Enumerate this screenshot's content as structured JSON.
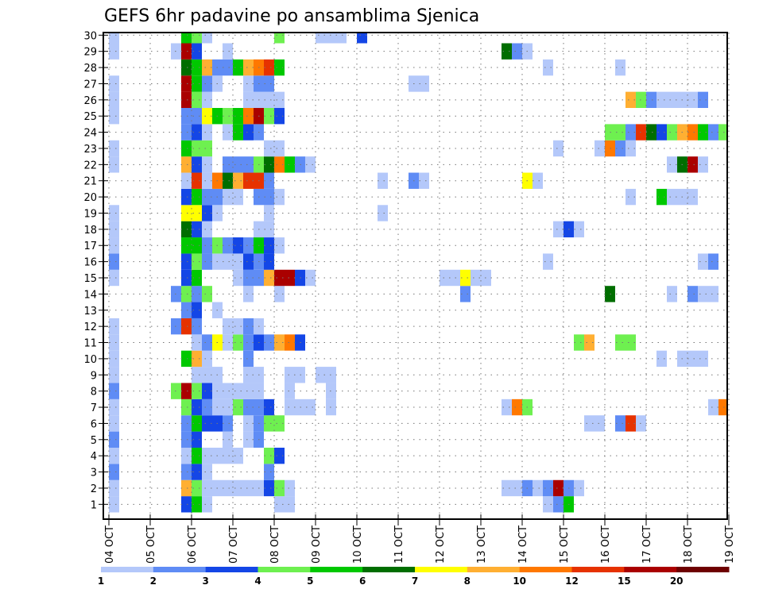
{
  "chart_data": {
    "type": "heatmap",
    "title": "GEFS 6hr padavine po ansamblima Sjenica",
    "xlabel": "",
    "ylabel": "",
    "x_unit": "6-hour step from 04 OCT 00Z",
    "x_steps": 61,
    "x_ticks": [
      "04 OCT",
      "05 OCT",
      "06 OCT",
      "07 OCT",
      "08 OCT",
      "09 OCT",
      "10 OCT",
      "11 OCT",
      "12 OCT",
      "13 OCT",
      "14 OCT",
      "15 OCT",
      "16 OCT",
      "17 OCT",
      "18 OCT",
      "19 OCT"
    ],
    "y_ticks": [
      "1",
      "2",
      "3",
      "4",
      "5",
      "6",
      "7",
      "8",
      "9",
      "10",
      "11",
      "12",
      "13",
      "14",
      "15",
      "16",
      "17",
      "18",
      "19",
      "20",
      "21",
      "22",
      "23",
      "24",
      "25",
      "26",
      "27",
      "28",
      "29",
      "30"
    ],
    "ylim": [
      0,
      30
    ],
    "grid": true,
    "colorbar": {
      "placement": "bottom",
      "labels": [
        "1",
        "2",
        "3",
        "4",
        "5",
        "6",
        "7",
        "8",
        "10",
        "12",
        "15",
        "20"
      ],
      "colors": [
        "#b4c8fa",
        "#5f8cf5",
        "#1446e6",
        "#6ef050",
        "#00c800",
        "#006e00",
        "#ffff00",
        "#ffaf32",
        "#ff7800",
        "#e63200",
        "#aa0000",
        "#6e0000"
      ]
    },
    "cells_note": "rows keyed by ensemble member; each entry is [time_step, color_class_index]",
    "rows": {
      "30": [
        [
          0,
          0
        ],
        [
          7,
          4
        ],
        [
          8,
          3
        ],
        [
          9,
          0
        ],
        [
          16,
          3
        ],
        [
          20,
          0
        ],
        [
          21,
          0
        ],
        [
          22,
          0
        ],
        [
          24,
          2
        ]
      ],
      "29": [
        [
          0,
          0
        ],
        [
          6,
          0
        ],
        [
          7,
          10
        ],
        [
          8,
          2
        ],
        [
          11,
          0
        ],
        [
          38,
          5
        ],
        [
          39,
          1
        ],
        [
          40,
          0
        ]
      ],
      "28": [
        [
          7,
          5
        ],
        [
          8,
          4
        ],
        [
          9,
          7
        ],
        [
          10,
          1
        ],
        [
          11,
          1
        ],
        [
          12,
          4
        ],
        [
          13,
          7
        ],
        [
          14,
          8
        ],
        [
          15,
          9
        ],
        [
          16,
          4
        ],
        [
          42,
          0
        ],
        [
          49,
          0
        ]
      ],
      "27": [
        [
          0,
          0
        ],
        [
          7,
          10
        ],
        [
          8,
          4
        ],
        [
          9,
          1
        ],
        [
          10,
          0
        ],
        [
          13,
          0
        ],
        [
          14,
          1
        ],
        [
          15,
          1
        ],
        [
          29,
          0
        ],
        [
          30,
          0
        ]
      ],
      "26": [
        [
          0,
          0
        ],
        [
          7,
          10
        ],
        [
          8,
          3
        ],
        [
          9,
          0
        ],
        [
          13,
          0
        ],
        [
          14,
          0
        ],
        [
          15,
          0
        ],
        [
          16,
          0
        ],
        [
          50,
          7
        ],
        [
          51,
          3
        ],
        [
          52,
          1
        ],
        [
          53,
          0
        ],
        [
          54,
          0
        ],
        [
          55,
          0
        ],
        [
          56,
          0
        ],
        [
          57,
          1
        ]
      ],
      "25": [
        [
          0,
          0
        ],
        [
          7,
          1
        ],
        [
          8,
          1
        ],
        [
          9,
          6
        ],
        [
          10,
          4
        ],
        [
          11,
          3
        ],
        [
          12,
          4
        ],
        [
          13,
          8
        ],
        [
          14,
          10
        ],
        [
          15,
          3
        ],
        [
          16,
          2
        ]
      ],
      "24": [
        [
          7,
          1
        ],
        [
          8,
          2
        ],
        [
          9,
          0
        ],
        [
          11,
          0
        ],
        [
          12,
          4
        ],
        [
          13,
          2
        ],
        [
          14,
          1
        ],
        [
          48,
          3
        ],
        [
          49,
          3
        ],
        [
          50,
          1
        ],
        [
          51,
          9
        ],
        [
          52,
          5
        ],
        [
          53,
          2
        ],
        [
          54,
          3
        ],
        [
          55,
          7
        ],
        [
          56,
          8
        ],
        [
          57,
          4
        ],
        [
          58,
          1
        ],
        [
          59,
          3
        ]
      ],
      "23": [
        [
          0,
          0
        ],
        [
          7,
          4
        ],
        [
          8,
          3
        ],
        [
          9,
          3
        ],
        [
          15,
          0
        ],
        [
          16,
          0
        ],
        [
          43,
          0
        ],
        [
          47,
          0
        ],
        [
          48,
          8
        ],
        [
          49,
          1
        ],
        [
          50,
          0
        ]
      ],
      "22": [
        [
          0,
          0
        ],
        [
          7,
          7
        ],
        [
          8,
          2
        ],
        [
          9,
          0
        ],
        [
          11,
          1
        ],
        [
          12,
          1
        ],
        [
          13,
          1
        ],
        [
          14,
          3
        ],
        [
          15,
          5
        ],
        [
          16,
          8
        ],
        [
          17,
          4
        ],
        [
          18,
          1
        ],
        [
          19,
          0
        ],
        [
          54,
          0
        ],
        [
          55,
          5
        ],
        [
          56,
          10
        ],
        [
          57,
          0
        ]
      ],
      "21": [
        [
          7,
          0
        ],
        [
          8,
          9
        ],
        [
          9,
          0
        ],
        [
          10,
          8
        ],
        [
          11,
          5
        ],
        [
          12,
          7
        ],
        [
          13,
          9
        ],
        [
          14,
          9
        ],
        [
          15,
          1
        ],
        [
          26,
          0
        ],
        [
          29,
          1
        ],
        [
          30,
          0
        ],
        [
          40,
          6
        ],
        [
          41,
          0
        ]
      ],
      "20": [
        [
          7,
          2
        ],
        [
          8,
          4
        ],
        [
          9,
          1
        ],
        [
          10,
          1
        ],
        [
          11,
          0
        ],
        [
          12,
          0
        ],
        [
          14,
          1
        ],
        [
          15,
          1
        ],
        [
          16,
          0
        ],
        [
          50,
          0
        ],
        [
          53,
          4
        ],
        [
          54,
          0
        ],
        [
          55,
          0
        ],
        [
          56,
          0
        ]
      ],
      "19": [
        [
          0,
          0
        ],
        [
          7,
          6
        ],
        [
          8,
          6
        ],
        [
          9,
          2
        ],
        [
          10,
          0
        ],
        [
          15,
          0
        ],
        [
          26,
          0
        ]
      ],
      "18": [
        [
          0,
          0
        ],
        [
          7,
          5
        ],
        [
          8,
          2
        ],
        [
          9,
          0
        ],
        [
          14,
          0
        ],
        [
          15,
          0
        ],
        [
          43,
          0
        ],
        [
          44,
          2
        ],
        [
          45,
          0
        ]
      ],
      "17": [
        [
          0,
          0
        ],
        [
          7,
          4
        ],
        [
          8,
          4
        ],
        [
          9,
          1
        ],
        [
          10,
          3
        ],
        [
          11,
          1
        ],
        [
          12,
          2
        ],
        [
          13,
          1
        ],
        [
          14,
          4
        ],
        [
          15,
          2
        ],
        [
          16,
          0
        ]
      ],
      "16": [
        [
          0,
          1
        ],
        [
          7,
          2
        ],
        [
          8,
          3
        ],
        [
          9,
          1
        ],
        [
          10,
          0
        ],
        [
          11,
          0
        ],
        [
          12,
          0
        ],
        [
          13,
          2
        ],
        [
          14,
          1
        ],
        [
          15,
          2
        ],
        [
          42,
          0
        ],
        [
          57,
          0
        ],
        [
          58,
          1
        ]
      ],
      "15": [
        [
          0,
          0
        ],
        [
          7,
          2
        ],
        [
          8,
          4
        ],
        [
          12,
          0
        ],
        [
          13,
          1
        ],
        [
          14,
          1
        ],
        [
          15,
          7
        ],
        [
          16,
          10
        ],
        [
          17,
          10
        ],
        [
          18,
          2
        ],
        [
          19,
          0
        ],
        [
          32,
          0
        ],
        [
          33,
          0
        ],
        [
          34,
          6
        ],
        [
          35,
          0
        ],
        [
          36,
          0
        ]
      ],
      "14": [
        [
          6,
          1
        ],
        [
          7,
          3
        ],
        [
          8,
          1
        ],
        [
          9,
          3
        ],
        [
          13,
          0
        ],
        [
          16,
          0
        ],
        [
          34,
          1
        ],
        [
          48,
          5
        ],
        [
          54,
          0
        ],
        [
          56,
          1
        ],
        [
          57,
          0
        ],
        [
          58,
          0
        ]
      ],
      "13": [
        [
          7,
          1
        ],
        [
          8,
          2
        ],
        [
          10,
          0
        ]
      ],
      "12": [
        [
          0,
          0
        ],
        [
          6,
          1
        ],
        [
          7,
          9
        ],
        [
          8,
          1
        ],
        [
          11,
          0
        ],
        [
          12,
          0
        ],
        [
          13,
          1
        ],
        [
          14,
          0
        ]
      ],
      "11": [
        [
          0,
          0
        ],
        [
          8,
          0
        ],
        [
          9,
          1
        ],
        [
          10,
          6
        ],
        [
          11,
          0
        ],
        [
          12,
          3
        ],
        [
          13,
          1
        ],
        [
          14,
          2
        ],
        [
          15,
          1
        ],
        [
          16,
          7
        ],
        [
          17,
          8
        ],
        [
          18,
          2
        ],
        [
          45,
          3
        ],
        [
          46,
          7
        ],
        [
          49,
          3
        ],
        [
          50,
          3
        ]
      ],
      "10": [
        [
          0,
          0
        ],
        [
          7,
          4
        ],
        [
          8,
          7
        ],
        [
          9,
          0
        ],
        [
          13,
          1
        ],
        [
          53,
          0
        ],
        [
          55,
          0
        ],
        [
          56,
          0
        ],
        [
          57,
          0
        ]
      ],
      "9": [
        [
          0,
          0
        ],
        [
          8,
          0
        ],
        [
          9,
          0
        ],
        [
          10,
          0
        ],
        [
          13,
          0
        ],
        [
          14,
          0
        ],
        [
          17,
          0
        ],
        [
          18,
          0
        ],
        [
          20,
          0
        ],
        [
          21,
          0
        ]
      ],
      "8": [
        [
          0,
          1
        ],
        [
          6,
          3
        ],
        [
          7,
          10
        ],
        [
          8,
          3
        ],
        [
          9,
          2
        ],
        [
          10,
          0
        ],
        [
          11,
          0
        ],
        [
          12,
          0
        ],
        [
          13,
          0
        ],
        [
          14,
          0
        ],
        [
          17,
          0
        ],
        [
          21,
          0
        ]
      ],
      "7": [
        [
          0,
          0
        ],
        [
          7,
          3
        ],
        [
          8,
          2
        ],
        [
          9,
          1
        ],
        [
          10,
          0
        ],
        [
          11,
          0
        ],
        [
          12,
          3
        ],
        [
          13,
          1
        ],
        [
          14,
          1
        ],
        [
          15,
          2
        ],
        [
          17,
          0
        ],
        [
          18,
          0
        ],
        [
          19,
          0
        ],
        [
          21,
          0
        ],
        [
          38,
          0
        ],
        [
          39,
          8
        ],
        [
          40,
          3
        ],
        [
          58,
          0
        ],
        [
          59,
          8
        ]
      ],
      "6": [
        [
          0,
          0
        ],
        [
          7,
          1
        ],
        [
          8,
          4
        ],
        [
          9,
          2
        ],
        [
          10,
          2
        ],
        [
          11,
          1
        ],
        [
          13,
          0
        ],
        [
          14,
          1
        ],
        [
          15,
          3
        ],
        [
          16,
          3
        ],
        [
          46,
          0
        ],
        [
          47,
          0
        ],
        [
          49,
          1
        ],
        [
          50,
          9
        ],
        [
          51,
          0
        ]
      ],
      "5": [
        [
          0,
          1
        ],
        [
          7,
          1
        ],
        [
          8,
          2
        ],
        [
          11,
          0
        ],
        [
          13,
          0
        ],
        [
          14,
          1
        ]
      ],
      "4": [
        [
          0,
          0
        ],
        [
          7,
          0
        ],
        [
          8,
          4
        ],
        [
          9,
          0
        ],
        [
          10,
          0
        ],
        [
          11,
          0
        ],
        [
          12,
          0
        ],
        [
          15,
          3
        ],
        [
          16,
          2
        ]
      ],
      "3": [
        [
          0,
          1
        ],
        [
          7,
          1
        ],
        [
          8,
          2
        ],
        [
          9,
          0
        ],
        [
          15,
          1
        ]
      ],
      "2": [
        [
          0,
          0
        ],
        [
          7,
          7
        ],
        [
          8,
          3
        ],
        [
          9,
          0
        ],
        [
          10,
          0
        ],
        [
          11,
          0
        ],
        [
          12,
          0
        ],
        [
          13,
          0
        ],
        [
          14,
          0
        ],
        [
          15,
          2
        ],
        [
          16,
          3
        ],
        [
          17,
          0
        ],
        [
          38,
          0
        ],
        [
          39,
          0
        ],
        [
          40,
          1
        ],
        [
          41,
          0
        ],
        [
          42,
          1
        ],
        [
          43,
          10
        ],
        [
          44,
          1
        ],
        [
          45,
          0
        ]
      ],
      "1": [
        [
          0,
          0
        ],
        [
          7,
          2
        ],
        [
          8,
          4
        ],
        [
          9,
          0
        ],
        [
          16,
          0
        ],
        [
          17,
          0
        ],
        [
          42,
          0
        ],
        [
          43,
          1
        ],
        [
          44,
          4
        ]
      ]
    }
  }
}
